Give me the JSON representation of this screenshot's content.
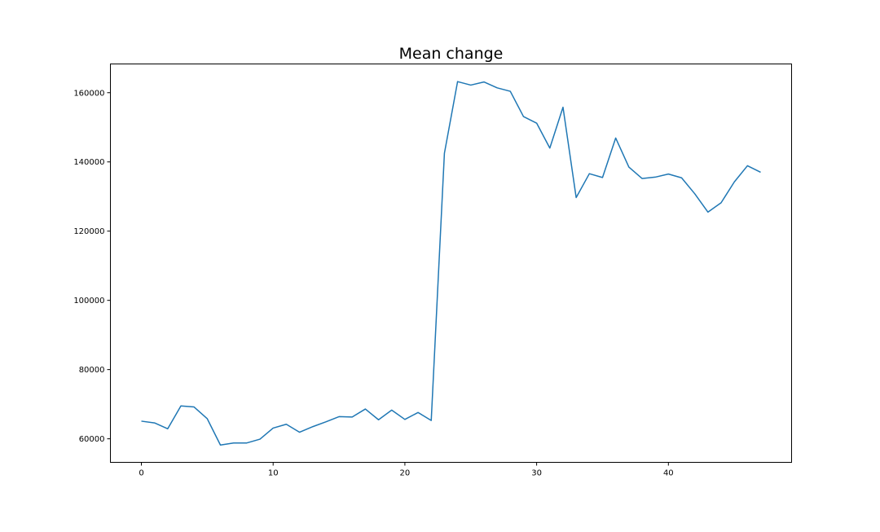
{
  "chart_data": {
    "type": "line",
    "title": "Mean change",
    "xlabel": "",
    "ylabel": "",
    "xlim": [
      -2.35,
      49.35
    ],
    "ylim": [
      53200,
      168300
    ],
    "xticks": [
      0,
      10,
      20,
      30,
      40
    ],
    "yticks": [
      60000,
      80000,
      100000,
      120000,
      140000,
      160000
    ],
    "grid": false,
    "legend": "none",
    "series": [
      {
        "color": "#1f77b4",
        "x": [
          0,
          1,
          2,
          3,
          4,
          5,
          6,
          7,
          8,
          9,
          10,
          11,
          12,
          13,
          14,
          15,
          16,
          17,
          18,
          19,
          20,
          21,
          22,
          23,
          24,
          25,
          26,
          27,
          28,
          29,
          30,
          31,
          32,
          33,
          34,
          35,
          36,
          37,
          38,
          39,
          40,
          41,
          42,
          43,
          44,
          45,
          46,
          47
        ],
        "values": [
          65100,
          64600,
          62900,
          69500,
          69200,
          65800,
          58200,
          58800,
          58800,
          59900,
          63100,
          64200,
          61900,
          63500,
          64900,
          66400,
          66300,
          68600,
          65500,
          68300,
          65600,
          67600,
          65300,
          142500,
          163200,
          162200,
          163100,
          161400,
          160400,
          153100,
          151200,
          144000,
          155800,
          129700,
          136600,
          135500,
          146900,
          138500,
          135200,
          135600,
          136500,
          135400,
          130800,
          125500,
          128200,
          134200,
          138900,
          137000
        ]
      }
    ]
  }
}
